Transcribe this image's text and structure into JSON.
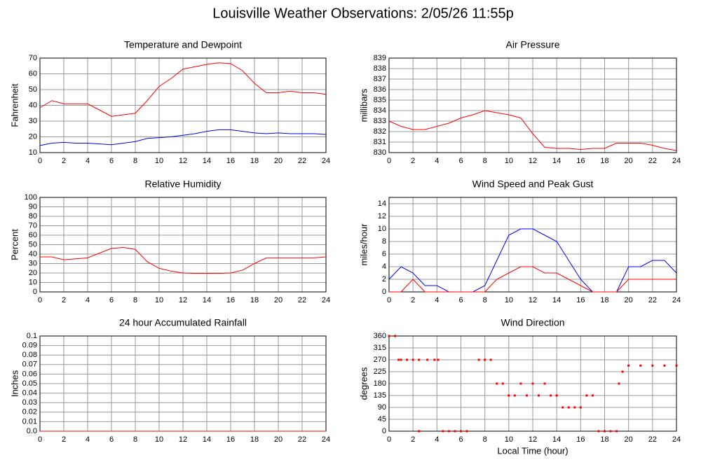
{
  "title": "Louisville Weather Observations: 2/05/26 11:55p",
  "chart_data": [
    {
      "type": "line",
      "title": "Temperature and Dewpoint",
      "ylabel": "Fahrenheit",
      "x": [
        0,
        1,
        2,
        3,
        4,
        5,
        6,
        7,
        8,
        9,
        10,
        11,
        12,
        13,
        14,
        15,
        16,
        17,
        18,
        19,
        20,
        21,
        22,
        23,
        24
      ],
      "series": [
        {
          "color": "#ff0000",
          "values": [
            38.5,
            43,
            41,
            41,
            41,
            37,
            33,
            34,
            35,
            43,
            52,
            57,
            63,
            64.5,
            66,
            67,
            66.5,
            62,
            54,
            48,
            48,
            49,
            48,
            48,
            47
          ]
        },
        {
          "color": "#0000ff",
          "values": [
            14.5,
            16,
            16.5,
            16,
            16,
            15.5,
            15,
            16,
            17,
            19,
            19.5,
            20,
            21,
            22,
            23.5,
            24.5,
            24.5,
            23.5,
            22.5,
            22,
            22.5,
            22,
            22,
            22,
            21.5
          ]
        }
      ],
      "xlim": [
        0,
        24
      ],
      "xticks": [
        0,
        2,
        4,
        6,
        8,
        10,
        12,
        14,
        16,
        18,
        20,
        22,
        24
      ],
      "ylim": [
        10,
        70
      ],
      "yticks": [
        10,
        20,
        30,
        40,
        50,
        60,
        70
      ],
      "grid": true
    },
    {
      "type": "line",
      "title": "Air Pressure",
      "ylabel": "millibars",
      "x": [
        0,
        1,
        2,
        3,
        4,
        5,
        6,
        7,
        8,
        9,
        10,
        11,
        12,
        13,
        14,
        15,
        16,
        17,
        18,
        19,
        20,
        21,
        22,
        23,
        24
      ],
      "series": [
        {
          "color": "#ff0000",
          "values": [
            833,
            832.5,
            832.2,
            832.2,
            832.5,
            832.8,
            833.3,
            833.6,
            834,
            833.8,
            833.6,
            833.3,
            831.8,
            830.5,
            830.4,
            830.4,
            830.3,
            830.4,
            830.4,
            830.9,
            830.9,
            830.9,
            830.7,
            830.4,
            830.2
          ]
        }
      ],
      "xlim": [
        0,
        24
      ],
      "xticks": [
        0,
        2,
        4,
        6,
        8,
        10,
        12,
        14,
        16,
        18,
        20,
        22,
        24
      ],
      "ylim": [
        830,
        839
      ],
      "yticks": [
        830,
        831,
        832,
        833,
        834,
        835,
        836,
        837,
        838,
        839
      ],
      "grid": true
    },
    {
      "type": "line",
      "title": "Relative Humidity",
      "ylabel": "Percent",
      "x": [
        0,
        1,
        2,
        3,
        4,
        5,
        6,
        7,
        8,
        9,
        10,
        11,
        12,
        13,
        14,
        15,
        16,
        17,
        18,
        19,
        20,
        21,
        22,
        23,
        24
      ],
      "series": [
        {
          "color": "#ff0000",
          "values": [
            37,
            37,
            34,
            35,
            36,
            41,
            46,
            47,
            45,
            32,
            25,
            22,
            20,
            19.5,
            19.5,
            19.5,
            20,
            23,
            30,
            36,
            36,
            36,
            36,
            36,
            37
          ]
        }
      ],
      "xlim": [
        0,
        24
      ],
      "xticks": [
        0,
        2,
        4,
        6,
        8,
        10,
        12,
        14,
        16,
        18,
        20,
        22,
        24
      ],
      "ylim": [
        0,
        100
      ],
      "yticks": [
        0,
        10,
        20,
        30,
        40,
        50,
        60,
        70,
        80,
        90,
        100
      ],
      "grid": true
    },
    {
      "type": "line",
      "title": "Wind Speed and Peak Gust",
      "ylabel": "miles/hour",
      "x": [
        0,
        1,
        2,
        3,
        4,
        5,
        6,
        7,
        8,
        9,
        10,
        11,
        12,
        13,
        14,
        15,
        16,
        17,
        18,
        19,
        20,
        21,
        22,
        23,
        24
      ],
      "series": [
        {
          "color": "#0000ff",
          "values": [
            2,
            4,
            3,
            1,
            1,
            0,
            0,
            0,
            1,
            5,
            9,
            10,
            10,
            9,
            8,
            5,
            2,
            0,
            0,
            0,
            4,
            4,
            5,
            5,
            3
          ]
        },
        {
          "color": "#ff0000",
          "values": [
            0,
            0,
            2,
            0,
            0,
            0,
            0,
            0,
            0,
            2,
            3,
            4,
            4,
            3,
            3,
            2,
            1,
            0,
            0,
            0,
            2,
            2,
            2,
            2,
            2
          ]
        }
      ],
      "xlim": [
        0,
        24
      ],
      "xticks": [
        0,
        2,
        4,
        6,
        8,
        10,
        12,
        14,
        16,
        18,
        20,
        22,
        24
      ],
      "ylim": [
        0,
        15
      ],
      "yticks": [
        0,
        2,
        4,
        6,
        8,
        10,
        12,
        14
      ],
      "grid": true
    },
    {
      "type": "line",
      "title": "24 hour Accumulated Rainfall",
      "ylabel": "Inches",
      "x": [
        0,
        1,
        2,
        3,
        4,
        5,
        6,
        7,
        8,
        9,
        10,
        11,
        12,
        13,
        14,
        15,
        16,
        17,
        18,
        19,
        20,
        21,
        22,
        23,
        24
      ],
      "series": [
        {
          "color": "#ff0000",
          "values": [
            0,
            0,
            0,
            0,
            0,
            0,
            0,
            0,
            0,
            0,
            0,
            0,
            0,
            0,
            0,
            0,
            0,
            0,
            0,
            0,
            0,
            0,
            0,
            0,
            0
          ]
        }
      ],
      "xlim": [
        0,
        24
      ],
      "xticks": [
        0,
        2,
        4,
        6,
        8,
        10,
        12,
        14,
        16,
        18,
        20,
        22,
        24
      ],
      "ylim": [
        0,
        0.1
      ],
      "yticks": [
        {
          "value": 0,
          "label": "0.0"
        },
        0.01,
        0.02,
        0.03,
        0.04,
        0.05,
        0.06,
        0.07,
        0.08,
        0.09,
        {
          "value": 0.1,
          "label": "0.1"
        }
      ],
      "grid": true
    },
    {
      "type": "scatter",
      "title": "Wind Direction",
      "ylabel": "degrees",
      "xlabel": "Local Time (hour)",
      "x": [
        0,
        0.5,
        0.8,
        1,
        1.5,
        2,
        2.5,
        3.2,
        3.8,
        4.1,
        2.5,
        4.5,
        5,
        5.5,
        6,
        6.5,
        7.5,
        8,
        8.5,
        9,
        9.5,
        10,
        10.5,
        11,
        11.5,
        12,
        12.5,
        13,
        13.5,
        14,
        14.5,
        15,
        15.5,
        16,
        16.5,
        17,
        17.5,
        18,
        18.5,
        19,
        19.2,
        19.5,
        20,
        21,
        22,
        23,
        24
      ],
      "color": "#ff0000",
      "values": [
        360,
        360,
        270,
        270,
        270,
        270,
        270,
        270,
        270,
        270,
        0,
        0,
        0,
        0,
        0,
        0,
        270,
        270,
        270,
        180,
        180,
        135,
        135,
        180,
        135,
        180,
        135,
        180,
        135,
        135,
        90,
        90,
        90,
        90,
        135,
        135,
        0,
        0,
        0,
        0,
        180,
        225,
        248,
        248,
        248,
        248,
        248
      ],
      "xlim": [
        0,
        24
      ],
      "xticks": [
        0,
        2,
        4,
        6,
        8,
        10,
        12,
        14,
        16,
        18,
        20,
        22,
        24
      ],
      "ylim": [
        0,
        360
      ],
      "yticks": [
        0,
        45,
        90,
        135,
        180,
        225,
        270,
        315,
        360
      ],
      "grid": true
    }
  ]
}
